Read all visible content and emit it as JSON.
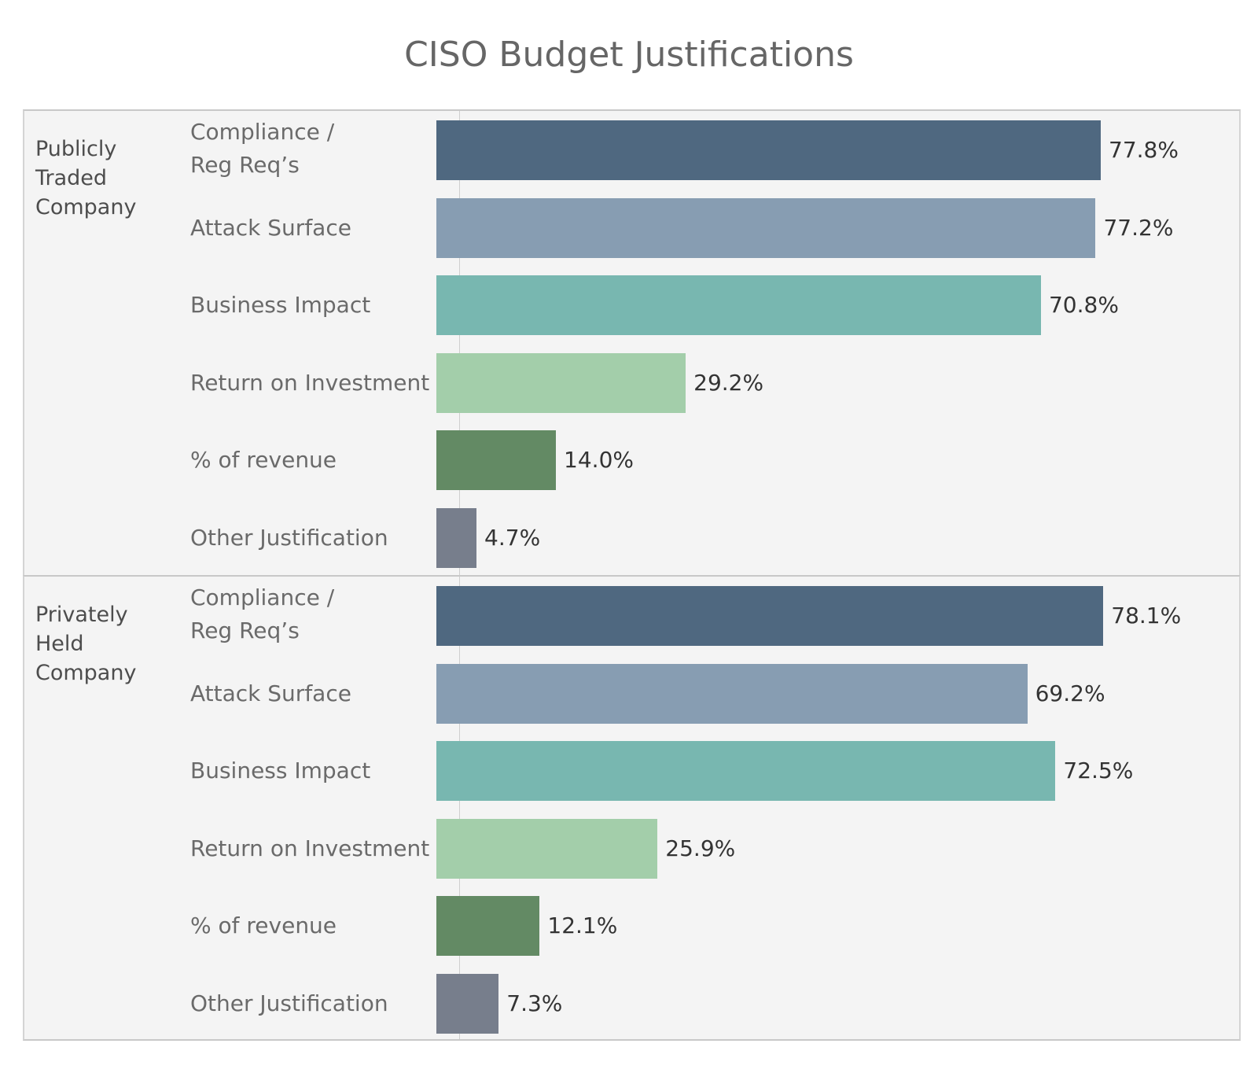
{
  "chart_data": {
    "type": "bar",
    "orientation": "horizontal",
    "title": "CISO Budget Justifications",
    "categories": [
      "Compliance / Reg Req’s",
      "Attack Surface",
      "Business Impact",
      "Return on Investment",
      "% of revenue",
      "Other Justification"
    ],
    "colors": [
      "#4f6880",
      "#879db2",
      "#78b7b0",
      "#a3ceaa",
      "#638a64",
      "#777e8c"
    ],
    "xlim": [
      0,
      100
    ],
    "groups": [
      {
        "label": "Publicly Traded Company",
        "values": [
          77.8,
          77.2,
          70.8,
          29.2,
          14.0,
          4.7
        ],
        "value_labels": [
          "77.8%",
          "77.2%",
          "70.8%",
          "29.2%",
          "14.0%",
          "4.7%"
        ]
      },
      {
        "label": "Privately Held Company",
        "values": [
          78.1,
          69.2,
          72.5,
          25.9,
          12.1,
          7.3
        ],
        "value_labels": [
          "78.1%",
          "69.2%",
          "72.5%",
          "25.9%",
          "12.1%",
          "7.3%"
        ]
      }
    ]
  }
}
